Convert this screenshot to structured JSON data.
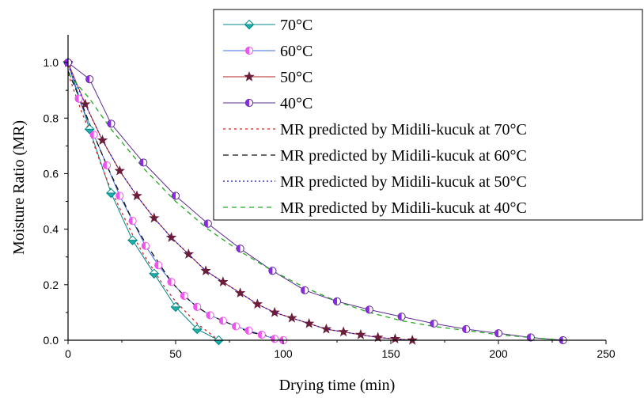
{
  "chart_data": {
    "type": "line",
    "xlabel": "Drying time (min)",
    "ylabel": "Moisture Ratio (MR)",
    "xlim": [
      0,
      250
    ],
    "ylim": [
      0,
      1.1
    ],
    "xticks": [
      0,
      50,
      100,
      150,
      200,
      250
    ],
    "yticks": [
      0.0,
      0.2,
      0.4,
      0.6,
      0.8,
      1.0
    ],
    "ytick_labels": [
      "0.0",
      "0.2",
      "0.4",
      "0.6",
      "0.8",
      "1.0"
    ],
    "grid": false,
    "legend_position": "top-right",
    "series": [
      {
        "name": "70°C",
        "kind": "observed",
        "marker": "diamond",
        "color": "#008B8B",
        "fill": "#20B2AA",
        "x": [
          0,
          10,
          20,
          30,
          40,
          50,
          60,
          70
        ],
        "y": [
          1.0,
          0.76,
          0.53,
          0.36,
          0.24,
          0.12,
          0.04,
          0.0
        ]
      },
      {
        "name": "60°C",
        "kind": "observed",
        "marker": "circle",
        "color": "#4169E1",
        "fill": "#EE55EE",
        "x": [
          0,
          5,
          12,
          18,
          24,
          30,
          36,
          42,
          48,
          54,
          60,
          66,
          72,
          78,
          84,
          90,
          96,
          100
        ],
        "y": [
          1.0,
          0.87,
          0.74,
          0.63,
          0.52,
          0.43,
          0.34,
          0.27,
          0.21,
          0.16,
          0.12,
          0.09,
          0.07,
          0.05,
          0.035,
          0.02,
          0.005,
          0.0
        ]
      },
      {
        "name": "50°C",
        "kind": "observed",
        "marker": "star",
        "color": "#B22222",
        "fill": "#6B1E3C",
        "x": [
          0,
          8,
          16,
          24,
          32,
          40,
          48,
          56,
          64,
          72,
          80,
          88,
          96,
          104,
          112,
          120,
          128,
          136,
          144,
          152,
          160
        ],
        "y": [
          1.0,
          0.85,
          0.72,
          0.61,
          0.52,
          0.44,
          0.37,
          0.31,
          0.25,
          0.21,
          0.17,
          0.13,
          0.1,
          0.08,
          0.06,
          0.04,
          0.03,
          0.02,
          0.01,
          0.005,
          0.0
        ]
      },
      {
        "name": "40°C",
        "kind": "observed",
        "marker": "halfcircle",
        "color": "#5B2C8F",
        "fill": "#8A2BE2",
        "x": [
          0,
          10,
          20,
          35,
          50,
          65,
          80,
          95,
          110,
          125,
          140,
          155,
          170,
          185,
          200,
          215,
          230
        ],
        "y": [
          1.0,
          0.94,
          0.78,
          0.64,
          0.52,
          0.42,
          0.33,
          0.25,
          0.18,
          0.14,
          0.11,
          0.085,
          0.06,
          0.04,
          0.025,
          0.01,
          0.0
        ]
      },
      {
        "name": "MR predicted by Midili-kucuk at 70°C",
        "kind": "predicted",
        "dash": "3,4",
        "color": "#DD2222",
        "x": [
          0,
          5,
          10,
          15,
          20,
          25,
          30,
          35,
          40,
          45,
          50,
          55,
          60,
          65,
          70
        ],
        "y": [
          0.96,
          0.85,
          0.75,
          0.64,
          0.54,
          0.46,
          0.38,
          0.31,
          0.25,
          0.19,
          0.14,
          0.1,
          0.06,
          0.03,
          0.0
        ]
      },
      {
        "name": "MR predicted by Midili-kucuk at 60°C",
        "kind": "predicted",
        "dash": "7,5",
        "color": "#111111",
        "x": [
          0,
          6,
          12,
          18,
          24,
          30,
          36,
          42,
          48,
          54,
          60,
          66,
          72,
          78,
          84,
          90,
          96,
          100
        ],
        "y": [
          0.97,
          0.86,
          0.74,
          0.63,
          0.53,
          0.43,
          0.35,
          0.28,
          0.21,
          0.16,
          0.12,
          0.09,
          0.07,
          0.05,
          0.03,
          0.02,
          0.008,
          0.0
        ]
      },
      {
        "name": "MR predicted by Midili-kucuk at 50°C",
        "kind": "predicted",
        "dash": "2,3",
        "color": "#1515CC",
        "x": [
          0,
          8,
          16,
          24,
          32,
          40,
          48,
          56,
          64,
          72,
          80,
          88,
          96,
          104,
          112,
          120,
          128,
          136,
          144,
          152,
          160
        ],
        "y": [
          0.99,
          0.85,
          0.72,
          0.61,
          0.52,
          0.44,
          0.37,
          0.31,
          0.25,
          0.21,
          0.17,
          0.13,
          0.1,
          0.08,
          0.06,
          0.04,
          0.03,
          0.02,
          0.01,
          0.005,
          0.0
        ]
      },
      {
        "name": "MR predicted by Midili-kucuk at 40°C",
        "kind": "predicted",
        "dash": "6,5",
        "color": "#22AA22",
        "x": [
          0,
          10,
          20,
          35,
          50,
          65,
          80,
          95,
          110,
          125,
          140,
          155,
          170,
          185,
          200,
          215,
          230
        ],
        "y": [
          0.96,
          0.87,
          0.76,
          0.62,
          0.5,
          0.4,
          0.32,
          0.25,
          0.19,
          0.14,
          0.1,
          0.07,
          0.05,
          0.035,
          0.02,
          0.01,
          0.0
        ]
      }
    ]
  }
}
